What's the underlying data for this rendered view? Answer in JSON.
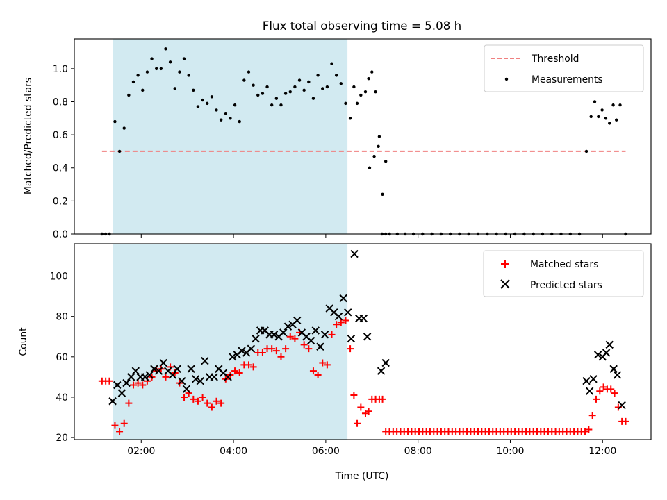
{
  "chart_data": [
    {
      "type": "scatter",
      "title": "Flux total observing time = 5.08 h",
      "xlabel": "",
      "ylabel": "Matched/Predicted stars",
      "xlim": [
        0.55,
        13.05
      ],
      "ylim": [
        0,
        1.18
      ],
      "yticks": [
        0.0,
        0.2,
        0.4,
        0.6,
        0.8,
        1.0
      ],
      "shaded_span": [
        1.38,
        6.47
      ],
      "shade_color": "#add8e6",
      "threshold": {
        "name": "Threshold",
        "y": 0.5,
        "x": [
          1.15,
          12.5
        ],
        "color": "#f08080"
      },
      "series": [
        {
          "name": "Measurements",
          "color": "#000000",
          "x": [
            1.15,
            1.23,
            1.31,
            1.43,
            1.53,
            1.63,
            1.73,
            1.83,
            1.93,
            2.03,
            2.13,
            2.23,
            2.33,
            2.43,
            2.53,
            2.63,
            2.73,
            2.83,
            2.93,
            3.03,
            3.13,
            3.23,
            3.33,
            3.43,
            3.53,
            3.63,
            3.73,
            3.83,
            3.93,
            4.03,
            4.13,
            4.23,
            4.33,
            4.43,
            4.53,
            4.63,
            4.73,
            4.83,
            4.93,
            5.03,
            5.13,
            5.23,
            5.33,
            5.43,
            5.53,
            5.63,
            5.73,
            5.83,
            5.93,
            6.03,
            6.13,
            6.23,
            6.33,
            6.43,
            6.53,
            6.61,
            6.68,
            6.76,
            6.86,
            6.93,
            7.0,
            7.08,
            7.16,
            7.23,
            7.3
          ],
          "y": [
            0.0,
            0.0,
            0.0,
            0.68,
            0.5,
            0.64,
            0.84,
            0.92,
            0.96,
            0.87,
            0.98,
            1.06,
            1.0,
            1.0,
            1.12,
            1.04,
            0.88,
            0.98,
            1.06,
            0.96,
            0.87,
            0.77,
            0.81,
            0.79,
            0.83,
            0.75,
            0.69,
            0.73,
            0.7,
            0.78,
            0.68,
            0.93,
            0.98,
            0.9,
            0.84,
            0.85,
            0.89,
            0.78,
            0.82,
            0.78,
            0.85,
            0.86,
            0.89,
            0.93,
            0.87,
            0.92,
            0.82,
            0.96,
            0.88,
            0.89,
            1.03,
            0.96,
            0.91,
            0.79,
            0.7,
            0.89,
            0.79,
            0.84,
            0.86,
            0.94,
            0.98,
            0.86,
            0.59,
            0.24,
            0.44
          ],
          "x2": [
            6.95,
            7.05,
            7.14,
            7.22,
            7.3,
            7.38,
            7.55,
            7.72,
            7.9,
            8.1,
            8.3,
            8.5,
            8.7,
            8.9,
            9.1,
            9.3,
            9.5,
            9.7,
            9.9,
            10.1,
            10.3,
            10.5,
            10.7,
            10.9,
            11.1,
            11.3,
            11.5,
            11.65,
            11.75,
            11.83,
            11.91,
            11.99,
            12.07,
            12.15,
            12.23,
            12.3,
            12.38,
            12.5
          ],
          "y2": [
            0.4,
            0.47,
            0.53,
            0.0,
            0.0,
            0.0,
            0.0,
            0.0,
            0.0,
            0.0,
            0.0,
            0.0,
            0.0,
            0.0,
            0.0,
            0.0,
            0.0,
            0.0,
            0.0,
            0.0,
            0.0,
            0.0,
            0.0,
            0.0,
            0.0,
            0.0,
            0.0,
            0.5,
            0.71,
            0.8,
            0.71,
            0.75,
            0.7,
            0.67,
            0.78,
            0.69,
            0.78,
            0.0
          ]
        }
      ],
      "legend": {
        "position": "upper right",
        "entries": [
          "Threshold",
          "Measurements"
        ]
      }
    },
    {
      "type": "scatter",
      "title": "",
      "xlabel": "Time (UTC)",
      "ylabel": "Count",
      "xlim": [
        0.55,
        13.05
      ],
      "ylim": [
        19,
        116
      ],
      "yticks": [
        20,
        40,
        60,
        80,
        100
      ],
      "xticks": [
        2,
        4,
        6,
        8,
        10,
        12
      ],
      "xticklabels": [
        "02:00",
        "04:00",
        "06:00",
        "08:00",
        "10:00",
        "12:00"
      ],
      "shaded_span": [
        1.38,
        6.47
      ],
      "shade_color": "#add8e6",
      "series": [
        {
          "name": "Matched stars",
          "marker": "plus",
          "color": "#ff0000",
          "x": [
            1.15,
            1.23,
            1.31,
            1.43,
            1.53,
            1.63,
            1.73,
            1.83,
            1.93,
            2.03,
            2.13,
            2.23,
            2.33,
            2.43,
            2.53,
            2.63,
            2.73,
            2.83,
            2.93,
            3.03,
            3.13,
            3.23,
            3.33,
            3.43,
            3.53,
            3.63,
            3.73,
            3.83,
            3.93,
            4.03,
            4.13,
            4.23,
            4.33,
            4.43,
            4.53,
            4.63,
            4.73,
            4.83,
            4.93,
            5.03,
            5.13,
            5.23,
            5.33,
            5.43,
            5.53,
            5.63,
            5.73,
            5.83,
            5.93,
            6.03,
            6.13,
            6.23,
            6.33,
            6.43,
            6.53,
            6.61,
            6.68,
            6.76,
            6.86,
            6.93,
            7.0,
            7.08,
            7.16,
            7.23,
            7.3,
            7.38,
            7.46,
            7.54,
            7.62,
            7.7,
            7.78,
            7.86,
            7.94,
            8.02,
            8.1,
            8.18,
            8.26,
            8.34,
            8.42,
            8.5,
            8.58,
            8.66,
            8.74,
            8.82,
            8.9,
            8.98,
            9.06,
            9.14,
            9.22,
            9.3,
            9.38,
            9.46,
            9.54,
            9.62,
            9.7,
            9.78,
            9.86,
            9.94,
            10.02,
            10.1,
            10.18,
            10.26,
            10.34,
            10.42,
            10.5,
            10.58,
            10.66,
            10.74,
            10.82,
            10.9,
            10.98,
            11.06,
            11.14,
            11.22,
            11.3,
            11.38,
            11.46,
            11.54,
            11.62,
            11.7,
            11.78,
            11.86,
            11.94,
            12.02,
            12.1,
            12.18,
            12.26,
            12.34,
            12.42,
            12.5
          ],
          "y": [
            48,
            48,
            48,
            26,
            23,
            27,
            37,
            46,
            47,
            46,
            48,
            50,
            53,
            54,
            50,
            55,
            52,
            47,
            40,
            42,
            39,
            38,
            40,
            37,
            35,
            38,
            37,
            49,
            51,
            53,
            52,
            56,
            56,
            55,
            62,
            62,
            64,
            64,
            63,
            60,
            64,
            70,
            69,
            72,
            66,
            64,
            53,
            51,
            57,
            56,
            71,
            76,
            77,
            78,
            64,
            41,
            27,
            35,
            32,
            33,
            39,
            39,
            39,
            39,
            23,
            23,
            23,
            23,
            23,
            23,
            23,
            23,
            23,
            23,
            23,
            23,
            23,
            23,
            23,
            23,
            23,
            23,
            23,
            23,
            23,
            23,
            23,
            23,
            23,
            23,
            23,
            23,
            23,
            23,
            23,
            23,
            23,
            23,
            23,
            23,
            23,
            23,
            23,
            23,
            23,
            23,
            23,
            23,
            23,
            23,
            23,
            23,
            23,
            23,
            23,
            23,
            23,
            23,
            23,
            24,
            31,
            39,
            43,
            45,
            44,
            44,
            42,
            35,
            28,
            28
          ]
        },
        {
          "name": "Predicted stars",
          "marker": "x",
          "color": "#000000",
          "x": [
            1.38,
            1.48,
            1.58,
            1.68,
            1.78,
            1.88,
            1.98,
            2.08,
            2.18,
            2.28,
            2.38,
            2.48,
            2.58,
            2.68,
            2.78,
            2.88,
            2.98,
            3.08,
            3.18,
            3.28,
            3.38,
            3.48,
            3.58,
            3.68,
            3.78,
            3.88,
            3.98,
            4.08,
            4.18,
            4.28,
            4.38,
            4.48,
            4.58,
            4.68,
            4.78,
            4.88,
            4.98,
            5.08,
            5.18,
            5.28,
            5.38,
            5.48,
            5.58,
            5.68,
            5.78,
            5.88,
            5.98,
            6.08,
            6.18,
            6.28,
            6.38,
            6.48,
            6.55,
            6.62,
            6.72,
            6.82,
            6.9,
            7.2,
            7.3,
            11.65,
            11.72,
            11.8,
            11.9,
            12.0,
            12.08,
            12.15,
            12.24,
            12.32,
            12.42
          ],
          "y": [
            38,
            46,
            42,
            47,
            50,
            53,
            50,
            50,
            51,
            54,
            53,
            57,
            53,
            51,
            54,
            48,
            44,
            54,
            49,
            48,
            58,
            50,
            50,
            54,
            52,
            50,
            60,
            61,
            63,
            62,
            64,
            69,
            73,
            73,
            71,
            71,
            70,
            72,
            75,
            76,
            78,
            72,
            70,
            68,
            73,
            65,
            71,
            84,
            82,
            80,
            89,
            82,
            69,
            111,
            79,
            79,
            70,
            53,
            57,
            48,
            43,
            49,
            61,
            60,
            62,
            66,
            54,
            51,
            36
          ]
        }
      ],
      "legend": {
        "position": "upper right",
        "entries": [
          "Matched stars",
          "Predicted stars"
        ]
      }
    }
  ]
}
